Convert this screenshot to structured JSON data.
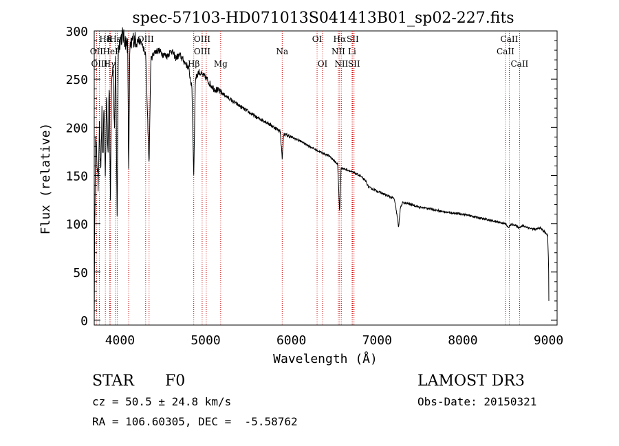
{
  "chart_data": {
    "type": "line",
    "title": "spec-57103-HD071013S041413B01_sp02-227.fits",
    "xlabel": "Wavelength (Å)",
    "ylabel": "Flux (relative)",
    "xlim": [
      3700,
      9100
    ],
    "ylim": [
      -5,
      300
    ],
    "xticks": [
      4000,
      5000,
      6000,
      7000,
      8000,
      9000
    ],
    "yticks": [
      0,
      50,
      100,
      150,
      200,
      250,
      300
    ],
    "grid": false,
    "series": [
      {
        "name": "flux",
        "color": "#000000",
        "anchors": [
          [
            3700,
            0
          ],
          [
            3705,
            80
          ],
          [
            3715,
            190
          ],
          [
            3730,
            170
          ],
          [
            3745,
            140
          ],
          [
            3760,
            200
          ],
          [
            3775,
            150
          ],
          [
            3790,
            215
          ],
          [
            3800,
            160
          ],
          [
            3815,
            225
          ],
          [
            3830,
            150
          ],
          [
            3845,
            235
          ],
          [
            3860,
            170
          ],
          [
            3875,
            250
          ],
          [
            3889,
            125
          ],
          [
            3900,
            250
          ],
          [
            3920,
            265
          ],
          [
            3935,
            195
          ],
          [
            3950,
            270
          ],
          [
            3968,
            100
          ],
          [
            3980,
            280
          ],
          [
            4000,
            290
          ],
          [
            4030,
            296
          ],
          [
            4060,
            290
          ],
          [
            4090,
            285
          ],
          [
            4102,
            150
          ],
          [
            4115,
            280
          ],
          [
            4150,
            292
          ],
          [
            4200,
            290
          ],
          [
            4250,
            288
          ],
          [
            4300,
            275
          ],
          [
            4340,
            160
          ],
          [
            4360,
            270
          ],
          [
            4400,
            278
          ],
          [
            4450,
            280
          ],
          [
            4500,
            276
          ],
          [
            4550,
            274
          ],
          [
            4600,
            280
          ],
          [
            4650,
            272
          ],
          [
            4700,
            275
          ],
          [
            4750,
            268
          ],
          [
            4800,
            262
          ],
          [
            4840,
            240
          ],
          [
            4861,
            150
          ],
          [
            4880,
            250
          ],
          [
            4920,
            258
          ],
          [
            4950,
            255
          ],
          [
            5000,
            252
          ],
          [
            5050,
            245
          ],
          [
            5100,
            240
          ],
          [
            5150,
            238
          ],
          [
            5200,
            235
          ],
          [
            5300,
            228
          ],
          [
            5400,
            222
          ],
          [
            5500,
            216
          ],
          [
            5600,
            210
          ],
          [
            5700,
            206
          ],
          [
            5800,
            200
          ],
          [
            5870,
            196
          ],
          [
            5893,
            168
          ],
          [
            5910,
            193
          ],
          [
            6000,
            190
          ],
          [
            6100,
            186
          ],
          [
            6200,
            181
          ],
          [
            6300,
            176
          ],
          [
            6400,
            172
          ],
          [
            6450,
            170
          ],
          [
            6500,
            165
          ],
          [
            6540,
            162
          ],
          [
            6563,
            112
          ],
          [
            6580,
            158
          ],
          [
            6650,
            156
          ],
          [
            6700,
            154
          ],
          [
            6800,
            150
          ],
          [
            6870,
            144
          ],
          [
            6900,
            138
          ],
          [
            7000,
            134
          ],
          [
            7100,
            130
          ],
          [
            7200,
            126
          ],
          [
            7240,
            105
          ],
          [
            7250,
            95
          ],
          [
            7270,
            116
          ],
          [
            7300,
            122
          ],
          [
            7400,
            120
          ],
          [
            7500,
            117
          ],
          [
            7600,
            116
          ],
          [
            7700,
            114
          ],
          [
            7800,
            112
          ],
          [
            7900,
            111
          ],
          [
            8000,
            110
          ],
          [
            8100,
            108
          ],
          [
            8200,
            106
          ],
          [
            8300,
            104
          ],
          [
            8400,
            102
          ],
          [
            8500,
            100
          ],
          [
            8530,
            96
          ],
          [
            8560,
            99
          ],
          [
            8600,
            99
          ],
          [
            8650,
            96
          ],
          [
            8700,
            98
          ],
          [
            8800,
            95
          ],
          [
            8850,
            94
          ],
          [
            8900,
            96
          ],
          [
            8950,
            92
          ],
          [
            8990,
            88
          ],
          [
            9000,
            60
          ],
          [
            9005,
            10
          ]
        ]
      }
    ],
    "lines": [
      {
        "label": "Hδ",
        "x": 3830,
        "row": 1
      },
      {
        "label": "K",
        "x": 3880,
        "row": 1
      },
      {
        "label": "Hε",
        "x": 3945,
        "row": 1
      },
      {
        "label": "OII",
        "x": 3727,
        "row": 2
      },
      {
        "label": "HeI",
        "x": 3890,
        "row": 2
      },
      {
        "label": "OIII",
        "x": 3760,
        "row": 3
      },
      {
        "label": "Hγ",
        "x": 3880,
        "row": 3
      },
      {
        "label": "OIII",
        "x": 4300,
        "row": 1
      },
      {
        "label": "OIII",
        "x": 4959,
        "row": 1
      },
      {
        "label": "OIII",
        "x": 4959,
        "row": 2
      },
      {
        "label": "Hβ",
        "x": 4861,
        "row": 3
      },
      {
        "label": "Mg",
        "x": 5175,
        "row": 3
      },
      {
        "label": "Na",
        "x": 5893,
        "row": 2
      },
      {
        "label": "OI",
        "x": 6300,
        "row": 1
      },
      {
        "label": "OI",
        "x": 6364,
        "row": 3
      },
      {
        "label": "Hα",
        "x": 6563,
        "row": 1
      },
      {
        "label": "SII",
        "x": 6716,
        "row": 1
      },
      {
        "label": "NII",
        "x": 6548,
        "row": 2
      },
      {
        "label": "Li",
        "x": 6708,
        "row": 2
      },
      {
        "label": "NII",
        "x": 6583,
        "row": 3
      },
      {
        "label": "SII",
        "x": 6731,
        "row": 3
      },
      {
        "label": "CaII",
        "x": 8542,
        "row": 1
      },
      {
        "label": "CaII",
        "x": 8498,
        "row": 2
      },
      {
        "label": "CaII",
        "x": 8662,
        "row": 3
      }
    ],
    "line_markers_x": [
      3727,
      3760,
      3830,
      3880,
      3890,
      3945,
      3968,
      4102,
      4300,
      4340,
      4861,
      4959,
      5007,
      5175,
      5893,
      6300,
      6364,
      6548,
      6563,
      6583,
      6708,
      6716,
      6731,
      8498,
      8542,
      8662
    ]
  },
  "info": {
    "object_class": "STAR",
    "subclass": "F0",
    "survey": "LAMOST DR3",
    "cz": "cz = 50.5 ± 24.8 km/s",
    "obs_date": "Obs-Date: 20150321",
    "coords": "RA = 106.60305, DEC =  -5.58762"
  },
  "colors": {
    "marker": "#cc0000",
    "axis": "#000000",
    "background": "#ffffff"
  }
}
